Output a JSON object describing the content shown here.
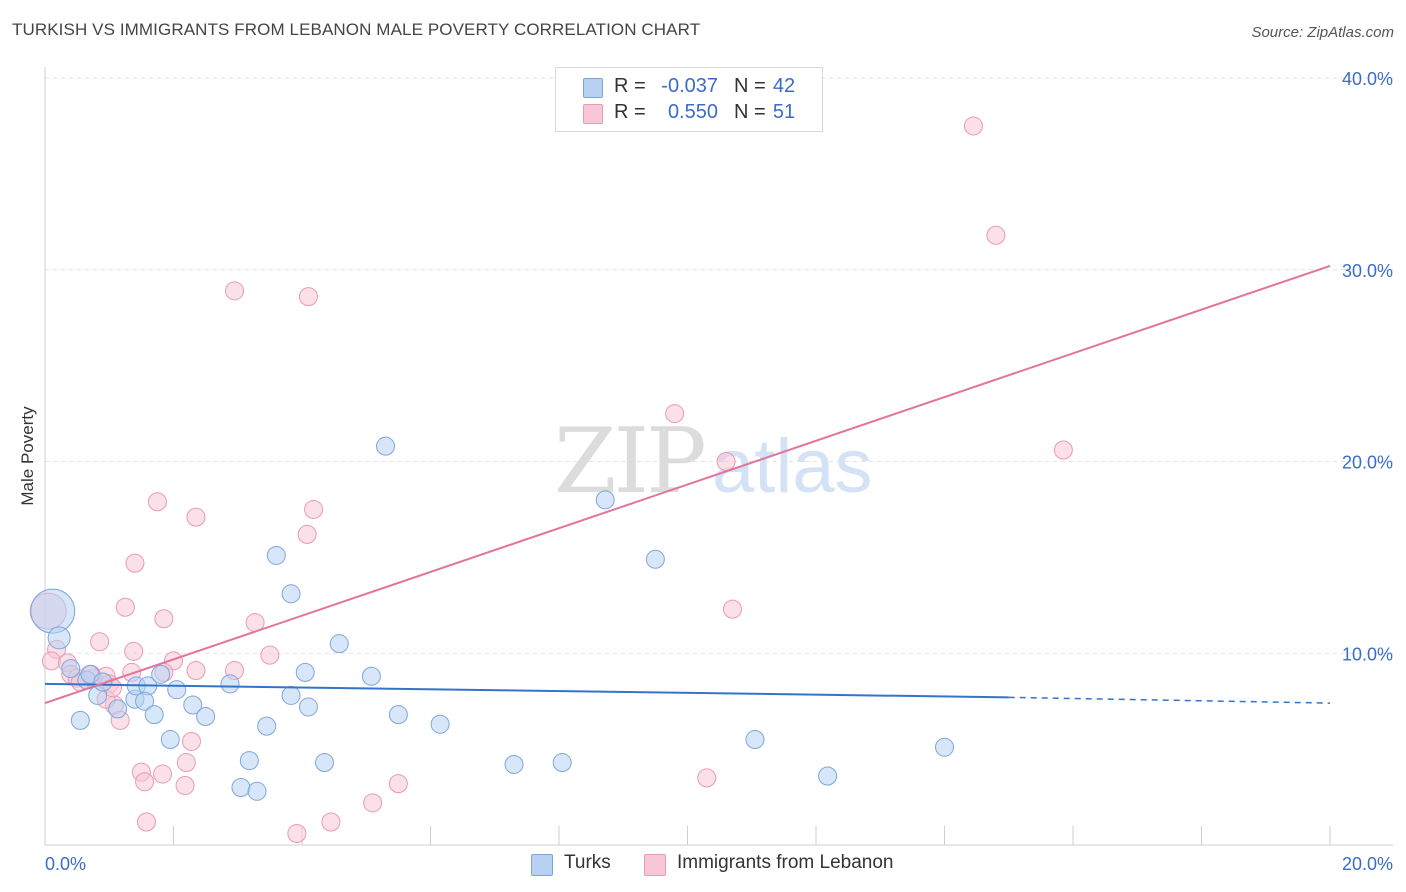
{
  "title": "TURKISH VS IMMIGRANTS FROM LEBANON MALE POVERTY CORRELATION CHART",
  "source": "Source: ZipAtlas.com",
  "watermark": {
    "zip": "ZIP",
    "atlas": "atlas"
  },
  "colors": {
    "turks_fill": "#b7d1f3",
    "turks_stroke": "#7fa6da",
    "turks_line": "#3573c9",
    "leb_fill": "#f8c6d6",
    "leb_stroke": "#e99ab5",
    "leb_line": "#e3739b",
    "axis_label": "#3b6cc9"
  },
  "legend": {
    "rows": [
      {
        "r_label": "R =",
        "r_value": "-0.037",
        "n_label": "N =",
        "n_value": "42"
      },
      {
        "r_label": "R =",
        "r_value": "0.550",
        "n_label": "N =",
        "n_value": "51"
      }
    ]
  },
  "bottom_legend": {
    "turks": "Turks",
    "lebanon": "Immigrants from Lebanon"
  },
  "chart_data": {
    "type": "scatter",
    "title": "TURKISH VS IMMIGRANTS FROM LEBANON MALE POVERTY CORRELATION CHART",
    "xlabel": "",
    "ylabel": "Male Poverty",
    "xlim": [
      0,
      20
    ],
    "ylim": [
      0,
      40
    ],
    "x_tick_labels": [
      {
        "value": 0,
        "label": "0.0%"
      },
      {
        "value": 20,
        "label": "20.0%"
      }
    ],
    "y_tick_labels": [
      {
        "value": 10,
        "label": "10.0%"
      },
      {
        "value": 20,
        "label": "20.0%"
      },
      {
        "value": 30,
        "label": "30.0%"
      },
      {
        "value": 40,
        "label": "40.0%"
      }
    ],
    "series": [
      {
        "name": "Turks",
        "r": -0.037,
        "n": 42,
        "trend": {
          "x0": 0,
          "y0": 8.4,
          "x1": 15.0,
          "y1": 7.7,
          "dashed_to_x": 20,
          "dashed_y": 7.4
        },
        "points": [
          [
            0.12,
            12.2,
            22
          ],
          [
            0.22,
            10.8,
            11
          ],
          [
            0.4,
            9.2,
            9
          ],
          [
            0.65,
            8.6,
            9
          ],
          [
            0.7,
            8.9,
            9
          ],
          [
            0.82,
            7.8,
            9
          ],
          [
            0.9,
            8.5,
            9
          ],
          [
            0.55,
            6.5,
            9
          ],
          [
            1.13,
            7.1,
            9
          ],
          [
            1.4,
            7.6,
            9
          ],
          [
            1.42,
            8.3,
            9
          ],
          [
            1.6,
            8.3,
            9
          ],
          [
            1.55,
            7.5,
            9
          ],
          [
            1.8,
            8.9,
            9
          ],
          [
            2.05,
            8.1,
            9
          ],
          [
            1.7,
            6.8,
            9
          ],
          [
            2.3,
            7.3,
            9
          ],
          [
            2.5,
            6.7,
            9
          ],
          [
            2.88,
            8.4,
            9
          ],
          [
            3.45,
            6.2,
            9
          ],
          [
            3.83,
            7.8,
            9
          ],
          [
            4.1,
            7.2,
            9
          ],
          [
            4.05,
            9.0,
            9
          ],
          [
            3.6,
            15.1,
            9
          ],
          [
            3.83,
            13.1,
            9
          ],
          [
            4.58,
            10.5,
            9
          ],
          [
            5.08,
            8.8,
            9
          ],
          [
            5.3,
            20.8,
            9
          ],
          [
            5.5,
            6.8,
            9
          ],
          [
            6.15,
            6.3,
            9
          ],
          [
            7.3,
            4.2,
            9
          ],
          [
            8.05,
            4.3,
            9
          ],
          [
            1.95,
            5.5,
            9
          ],
          [
            3.18,
            4.4,
            9
          ],
          [
            3.05,
            3.0,
            9
          ],
          [
            3.3,
            2.8,
            9
          ],
          [
            4.35,
            4.3,
            9
          ],
          [
            8.72,
            18.0,
            9
          ],
          [
            9.5,
            14.9,
            9
          ],
          [
            11.05,
            5.5,
            9
          ],
          [
            12.18,
            3.6,
            9
          ],
          [
            14.0,
            5.1,
            9
          ]
        ]
      },
      {
        "name": "Immigrants from Lebanon",
        "r": 0.55,
        "n": 51,
        "trend": {
          "x0": 0,
          "y0": 7.4,
          "x1": 20,
          "y1": 30.2
        },
        "points": [
          [
            0.05,
            12.2,
            18
          ],
          [
            0.18,
            10.2,
            9
          ],
          [
            0.1,
            9.6,
            9
          ],
          [
            0.35,
            9.5,
            9
          ],
          [
            0.4,
            8.9,
            9
          ],
          [
            0.5,
            8.7,
            9
          ],
          [
            0.55,
            8.5,
            9
          ],
          [
            0.85,
            10.6,
            9
          ],
          [
            0.75,
            8.7,
            9
          ],
          [
            0.95,
            8.8,
            9
          ],
          [
            1.0,
            8.4,
            9
          ],
          [
            1.08,
            7.3,
            9
          ],
          [
            1.17,
            6.5,
            9
          ],
          [
            0.95,
            7.6,
            9
          ],
          [
            1.25,
            12.4,
            9
          ],
          [
            1.4,
            14.7,
            9
          ],
          [
            1.38,
            10.1,
            9
          ],
          [
            1.35,
            9.0,
            9
          ],
          [
            1.85,
            11.8,
            9
          ],
          [
            2.0,
            9.6,
            9
          ],
          [
            1.85,
            9.0,
            9
          ],
          [
            1.75,
            17.9,
            9
          ],
          [
            2.35,
            17.1,
            9
          ],
          [
            2.95,
            28.9,
            9
          ],
          [
            2.95,
            9.1,
            9
          ],
          [
            3.27,
            11.6,
            9
          ],
          [
            3.5,
            9.9,
            9
          ],
          [
            4.1,
            28.6,
            9
          ],
          [
            4.18,
            17.5,
            9
          ],
          [
            4.08,
            16.2,
            9
          ],
          [
            2.28,
            5.4,
            9
          ],
          [
            2.2,
            4.3,
            9
          ],
          [
            1.5,
            3.8,
            9
          ],
          [
            1.55,
            3.3,
            9
          ],
          [
            1.83,
            3.7,
            9
          ],
          [
            2.18,
            3.1,
            9
          ],
          [
            1.58,
            1.2,
            9
          ],
          [
            3.92,
            0.6,
            9
          ],
          [
            4.45,
            1.2,
            9
          ],
          [
            5.1,
            2.2,
            9
          ],
          [
            5.5,
            3.2,
            9
          ],
          [
            9.8,
            22.5,
            9
          ],
          [
            10.3,
            3.5,
            9
          ],
          [
            10.6,
            20.0,
            9
          ],
          [
            10.7,
            12.3,
            9
          ],
          [
            14.45,
            37.5,
            9
          ],
          [
            14.8,
            31.8,
            9
          ],
          [
            15.85,
            20.6,
            9
          ],
          [
            2.35,
            9.1,
            9
          ],
          [
            1.05,
            8.2,
            9
          ],
          [
            0.72,
            8.9,
            9
          ]
        ]
      }
    ]
  }
}
